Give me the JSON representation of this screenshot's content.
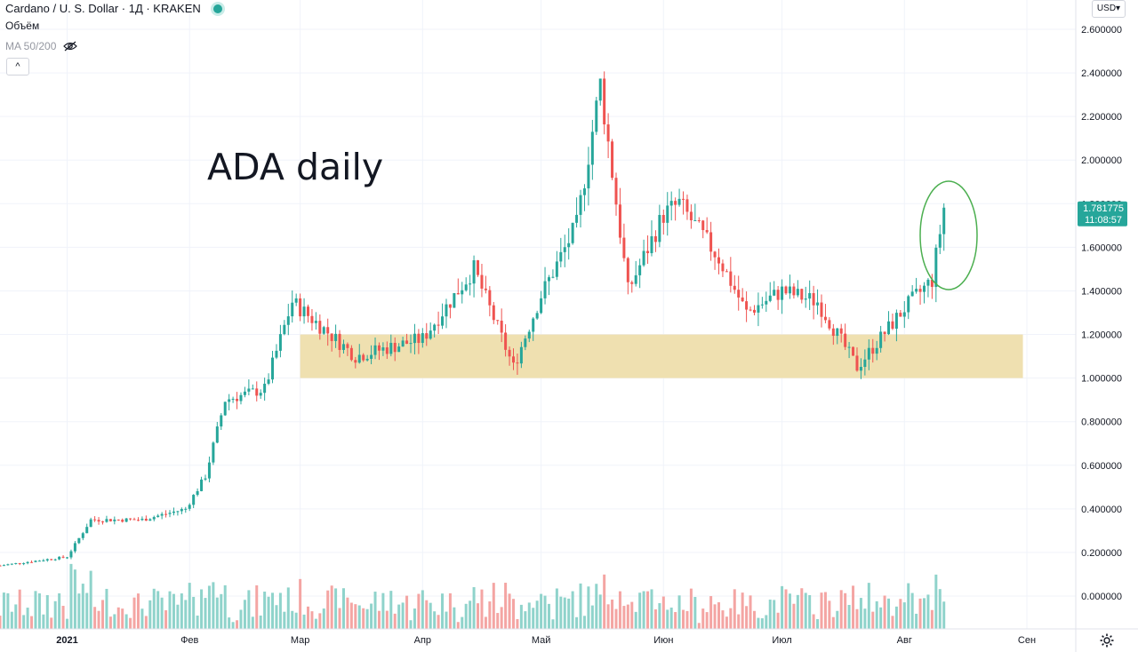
{
  "header": {
    "symbol_line": "Cardano / U. S. Dollar · 1Д · KRAKEN",
    "volume_label": "Объём",
    "ma_label": "MA 50/200",
    "collapse_glyph": "^",
    "currency": "USD",
    "currency_caret": "▾"
  },
  "annotation": "ADA daily",
  "icons": [
    "live-status-dot",
    "eye-hidden-icon",
    "collapse-chevron-icon",
    "gear-icon"
  ],
  "colors": {
    "up": "#26a69a",
    "down": "#ef5350",
    "up_volume": "#8fd3cb",
    "down_volume": "#f4a5a3",
    "support_zone": "#efe0b0",
    "circle": "#4caf50",
    "price_label_bg": "#26a69a"
  },
  "chart_data": {
    "type": "candlestick",
    "title": "Cardano / U. S. Dollar · 1Д · KRAKEN",
    "yaxis_ticks": [
      "2.600000",
      "2.400000",
      "2.200000",
      "2.000000",
      "1.800000",
      "1.600000",
      "1.400000",
      "1.200000",
      "1.000000",
      "0.800000",
      "0.600000",
      "0.400000",
      "0.200000",
      "0.000000"
    ],
    "xaxis_ticks": [
      "2021",
      "Фев",
      "Мар",
      "Апр",
      "Май",
      "Июн",
      "Июл",
      "Авг",
      "Сен"
    ],
    "ylim": [
      0.0,
      2.6
    ],
    "grid": true,
    "last_price": "1.781775",
    "countdown": "11:08:57",
    "support_zone": {
      "from_date": "2021-03-01",
      "to_date": "2021-08-31",
      "low": 1.0,
      "high": 1.2
    },
    "highlight": "ellipse around the last candles (Aug 2021 breakout)",
    "series": [
      {
        "kind": "monthly_close_anchors",
        "values": [
          {
            "date": "2020-12-15",
            "price": 0.14
          },
          {
            "date": "2021-01-01",
            "price": 0.18
          },
          {
            "date": "2021-01-07",
            "price": 0.35
          },
          {
            "date": "2021-01-20",
            "price": 0.35
          },
          {
            "date": "2021-01-31",
            "price": 0.4
          },
          {
            "date": "2021-02-05",
            "price": 0.55
          },
          {
            "date": "2021-02-10",
            "price": 0.9
          },
          {
            "date": "2021-02-20",
            "price": 0.95
          },
          {
            "date": "2021-02-27",
            "price": 1.35
          },
          {
            "date": "2021-03-15",
            "price": 1.1
          },
          {
            "date": "2021-04-01",
            "price": 1.18
          },
          {
            "date": "2021-04-14",
            "price": 1.5
          },
          {
            "date": "2021-04-24",
            "price": 1.05
          },
          {
            "date": "2021-05-01",
            "price": 1.38
          },
          {
            "date": "2021-05-10",
            "price": 1.7
          },
          {
            "date": "2021-05-16",
            "price": 2.35
          },
          {
            "date": "2021-05-23",
            "price": 1.4
          },
          {
            "date": "2021-06-01",
            "price": 1.75
          },
          {
            "date": "2021-06-05",
            "price": 1.8
          },
          {
            "date": "2021-06-15",
            "price": 1.55
          },
          {
            "date": "2021-06-22",
            "price": 1.3
          },
          {
            "date": "2021-07-01",
            "price": 1.4
          },
          {
            "date": "2021-07-10",
            "price": 1.35
          },
          {
            "date": "2021-07-20",
            "price": 1.05
          },
          {
            "date": "2021-08-01",
            "price": 1.32
          },
          {
            "date": "2021-08-08",
            "price": 1.45
          },
          {
            "date": "2021-08-11",
            "price": 1.78
          }
        ]
      }
    ]
  }
}
